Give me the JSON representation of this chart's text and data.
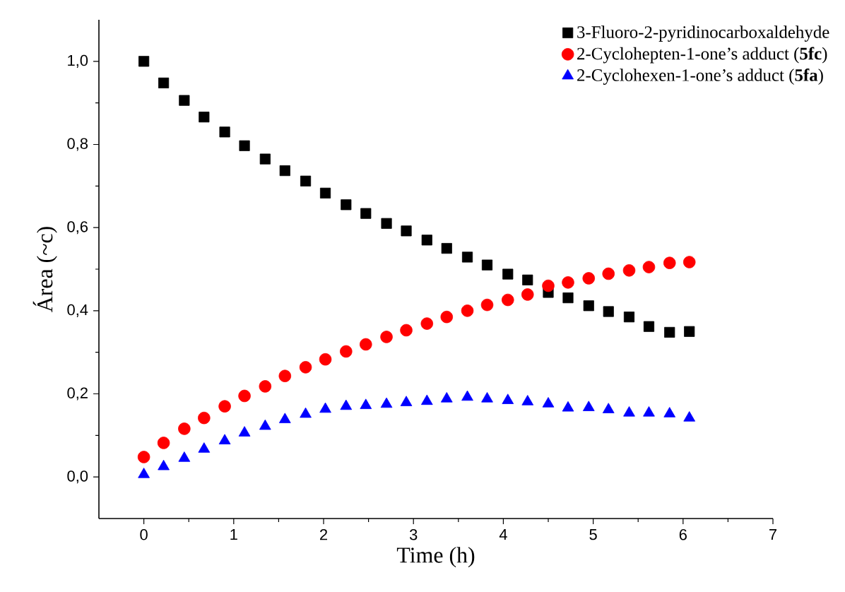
{
  "chart_data": {
    "type": "scatter",
    "xlabel": "Time (h)",
    "ylabel": "Área (~c)",
    "x": [
      0,
      0.22,
      0.45,
      0.67,
      0.9,
      1.12,
      1.35,
      1.57,
      1.8,
      2.02,
      2.25,
      2.47,
      2.7,
      2.92,
      3.15,
      3.37,
      3.6,
      3.82,
      4.05,
      4.27,
      4.5,
      4.72,
      4.95,
      5.17,
      5.4,
      5.62,
      5.85,
      6.07
    ],
    "series": [
      {
        "name": "3-Fluoro-2-pyridinocarboxaldehyde",
        "color": "#000000",
        "marker": "square",
        "values": [
          1.0,
          0.948,
          0.906,
          0.866,
          0.83,
          0.797,
          0.765,
          0.737,
          0.712,
          0.683,
          0.655,
          0.634,
          0.61,
          0.592,
          0.57,
          0.55,
          0.529,
          0.51,
          0.488,
          0.474,
          0.444,
          0.431,
          0.412,
          0.398,
          0.385,
          0.362,
          0.348,
          0.35
        ]
      },
      {
        "name": "2-Cyclohepten-1-one’s adduct (**5fc**)",
        "color": "#ff0000",
        "marker": "circle",
        "values": [
          0.048,
          0.082,
          0.116,
          0.142,
          0.17,
          0.195,
          0.218,
          0.243,
          0.264,
          0.283,
          0.302,
          0.319,
          0.337,
          0.353,
          0.369,
          0.385,
          0.4,
          0.414,
          0.426,
          0.439,
          0.46,
          0.468,
          0.478,
          0.489,
          0.497,
          0.505,
          0.515,
          0.517
        ]
      },
      {
        "name": "2-Cyclohexen-1-one’s adduct (**5fa**)",
        "color": "#0000ff",
        "marker": "triangle",
        "values": [
          0.006,
          0.025,
          0.045,
          0.067,
          0.087,
          0.106,
          0.122,
          0.138,
          0.151,
          0.163,
          0.17,
          0.172,
          0.175,
          0.179,
          0.182,
          0.188,
          0.192,
          0.188,
          0.184,
          0.181,
          0.176,
          0.166,
          0.167,
          0.162,
          0.154,
          0.154,
          0.152,
          0.142
        ]
      }
    ],
    "xlim": [
      -0.5,
      7
    ],
    "xticks": [
      0,
      1,
      2,
      3,
      4,
      5,
      6,
      7
    ],
    "ylim": [
      -0.1,
      1.1
    ],
    "yticks": [
      {
        "value": 0,
        "label": "0,0"
      },
      {
        "value": 0.2,
        "label": "0,2"
      },
      {
        "value": 0.4,
        "label": "0,4"
      },
      {
        "value": 0.6,
        "label": "0,6"
      },
      {
        "value": 0.8,
        "label": "0,8"
      },
      {
        "value": 1.0,
        "label": "1,0"
      }
    ],
    "legend": "top right",
    "grid": false
  }
}
